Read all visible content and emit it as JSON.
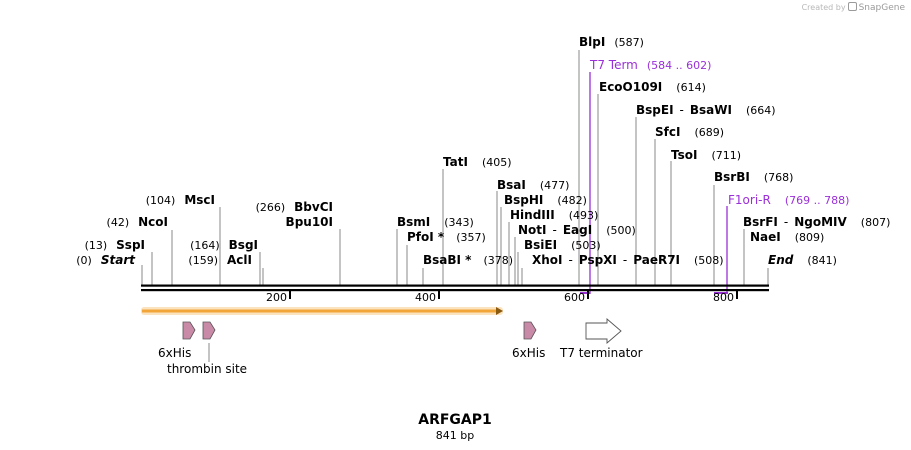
{
  "credit": {
    "prefix": "Created by",
    "brand": "SnapGene"
  },
  "plasmid": {
    "name": "ARFGAP1",
    "length_label": "841 bp"
  },
  "ruler_ticks": [
    "200",
    "400",
    "600",
    "800"
  ],
  "labels": {
    "blpi": {
      "name": "BlpI",
      "pos": "(587)"
    },
    "t7term": {
      "name": "T7 Term",
      "pos": "(584 .. 602)"
    },
    "ecoo109i": {
      "name": "EcoO109I",
      "pos": "(614)"
    },
    "bspei": {
      "name": "BspEI",
      "sep": "-",
      "name2": "BsaWI",
      "pos": "(664)"
    },
    "sfci": {
      "name": "SfcI",
      "pos": "(689)"
    },
    "tsoi": {
      "name": "TsoI",
      "pos": "(711)"
    },
    "tati": {
      "name": "TatI",
      "pos": "(405)"
    },
    "bsrbi": {
      "name": "BsrBI",
      "pos": "(768)"
    },
    "bsai": {
      "name": "BsaI",
      "pos": "(477)"
    },
    "f1orir": {
      "name": "F1ori-R",
      "pos": "(769 .. 788)"
    },
    "msci": {
      "name": "MscI",
      "pos": "(104)"
    },
    "bbvci": {
      "name": "BbvCI",
      "pos": "(266)"
    },
    "bsphi": {
      "name": "BspHI",
      "pos": "(482)"
    },
    "hindiii": {
      "name": "HindIII",
      "pos": "(493)"
    },
    "ncoi": {
      "name": "NcoI",
      "pos": "(42)"
    },
    "bpu10i": {
      "name": "Bpu10I"
    },
    "bsmi": {
      "name": "BsmI",
      "pos": "(343)"
    },
    "noti": {
      "name": "NotI",
      "sep": "-",
      "name2": "EagI",
      "pos": "(500)"
    },
    "bsrfi": {
      "name": "BsrFI",
      "sep": "-",
      "name2": "NgoMIV",
      "pos": "(807)"
    },
    "pfoi": {
      "name": "PfoI *",
      "pos": "(357)"
    },
    "naei": {
      "name": "NaeI",
      "pos": "(809)"
    },
    "sspi": {
      "name": "SspI",
      "pos": "(13)"
    },
    "bsgi": {
      "name": "BsgI",
      "pos": "(164)"
    },
    "bsiei": {
      "name": "BsiEI",
      "pos": "(503)"
    },
    "start": {
      "name": "Start",
      "pos": "(0)"
    },
    "acli": {
      "name": "AclI",
      "pos": "(159)"
    },
    "bsabi": {
      "name": "BsaBI *",
      "pos": "(378)"
    },
    "xhoi": {
      "name": "XhoI",
      "sep": "-",
      "name2": "PspXI",
      "sep2": "-",
      "name3": "PaeR7I",
      "pos": "(508)"
    },
    "end": {
      "name": "End",
      "pos": "(841)"
    }
  },
  "features": {
    "his1": "6xHis",
    "thrombin": "thrombin site",
    "his2": "6xHis",
    "t7terminator": "T7 terminator"
  },
  "colors": {
    "primer": "#9b30d9",
    "orf_fill": "#f2a63a",
    "orf_glow": "#fbe3c0",
    "his_tag": "#c98aa8",
    "terminator": "#ffffff",
    "backbone": "#000000",
    "site_line": "#888888"
  }
}
